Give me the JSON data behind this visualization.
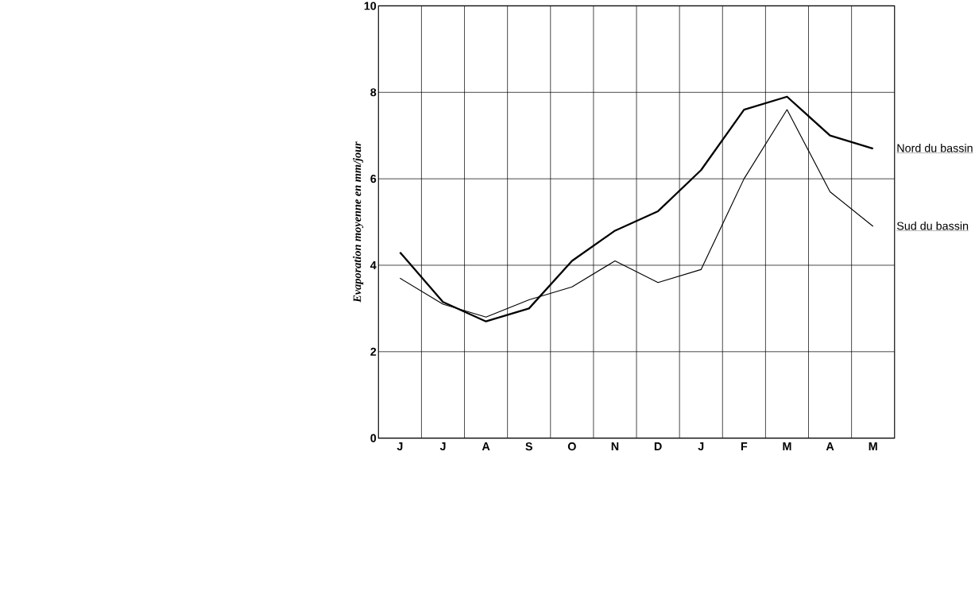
{
  "chart_data": {
    "type": "line",
    "ylabel": "Evaporation moyenne en mm/jour",
    "categories": [
      "J",
      "J",
      "A",
      "S",
      "O",
      "N",
      "D",
      "J",
      "F",
      "M",
      "A",
      "M"
    ],
    "series": [
      {
        "name": "Nord du bassin",
        "color": "#000000",
        "values": [
          4.3,
          3.15,
          2.7,
          3.0,
          4.1,
          4.8,
          5.25,
          6.2,
          7.6,
          7.9,
          7.0,
          6.7
        ]
      },
      {
        "name": "Sud du bassin",
        "color": "#000000",
        "values": [
          3.7,
          3.1,
          2.8,
          3.2,
          3.5,
          4.1,
          3.6,
          3.9,
          6.0,
          7.6,
          5.7,
          4.9
        ]
      }
    ],
    "ylim": [
      0,
      10
    ],
    "yticks": [
      0,
      2,
      4,
      6,
      8,
      10
    ],
    "grid": true,
    "marker": "none",
    "line_style": "solid"
  }
}
